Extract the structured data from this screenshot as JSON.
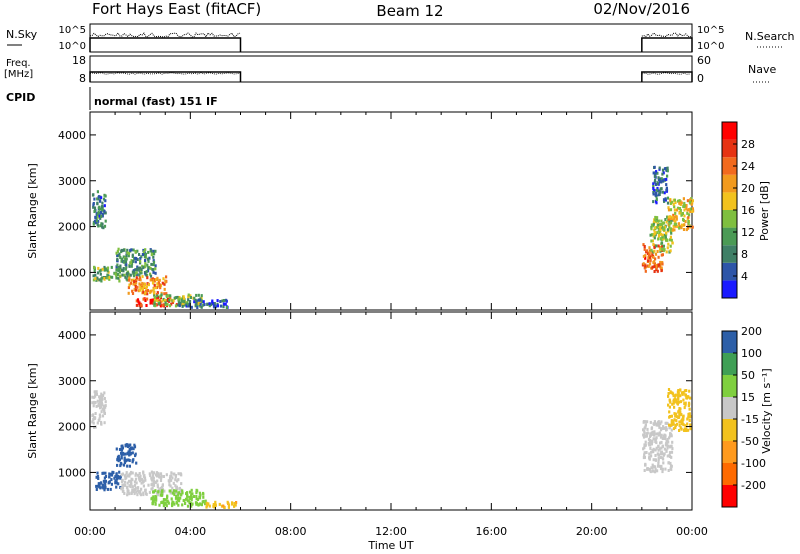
{
  "header": {
    "station": "Fort Hays East (fitACF)",
    "beam": "Beam 12",
    "date": "02/Nov/2016"
  },
  "nsky_panel": {
    "left_label": "N.Sky",
    "right_label": "N.Search",
    "left_ticks": [
      "10^5",
      "10^0"
    ],
    "right_ticks": [
      "10^5",
      "10^0"
    ]
  },
  "freq_panel": {
    "left_label_1": "Freq.",
    "left_label_2": "[MHz]",
    "right_label": "Nave",
    "left_ticks": [
      "18",
      "8"
    ],
    "right_ticks": [
      "60",
      "0"
    ]
  },
  "cpid_panel": {
    "label": "CPID",
    "program": "normal (fast) 151 IF"
  },
  "colors": {
    "axis": "#000000",
    "power_scale": [
      "#1a1aff",
      "#2d55a8",
      "#3f7f66",
      "#4b9a55",
      "#7fbf3f",
      "#f2c21e",
      "#f29a1e",
      "#f26a1e",
      "#e63312",
      "#ff0000"
    ],
    "velocity_scale": [
      "#ff0000",
      "#ff6a00",
      "#ff9a1e",
      "#f2c21e",
      "#c8c8c8",
      "#7fcf3f",
      "#3f9f55",
      "#2d5fa8"
    ]
  },
  "chart_data": [
    {
      "type": "heatmap",
      "name": "power",
      "ylabel": "Slant Range [km]",
      "y_ticks": [
        "1000",
        "2000",
        "3000",
        "4000"
      ],
      "ylim": [
        180,
        4500
      ],
      "x_ticks": [
        "00:00",
        "04:00",
        "08:00",
        "12:00",
        "16:00",
        "20:00",
        "00:00"
      ],
      "xlim_hours": [
        0,
        24
      ],
      "colorbar": {
        "label": "Power [dB]",
        "ticks": [
          "4",
          "8",
          "12",
          "16",
          "20",
          "24",
          "28"
        ],
        "range": [
          0,
          32
        ]
      },
      "data_windows_hours": [
        [
          0,
          6
        ],
        [
          22,
          24
        ]
      ],
      "blobs": [
        {
          "t": [
            0.05,
            0.6
          ],
          "r": [
            1950,
            2750
          ],
          "value": 8
        },
        {
          "t": [
            0.1,
            1.5
          ],
          "r": [
            800,
            1100
          ],
          "value": 12
        },
        {
          "t": [
            1.0,
            2.6
          ],
          "r": [
            900,
            1500
          ],
          "value": 10
        },
        {
          "t": [
            1.5,
            3.0
          ],
          "r": [
            500,
            900
          ],
          "value": 22
        },
        {
          "t": [
            1.8,
            3.5
          ],
          "r": [
            250,
            450
          ],
          "value": 28
        },
        {
          "t": [
            2.5,
            4.5
          ],
          "r": [
            250,
            500
          ],
          "value": 14
        },
        {
          "t": [
            3.5,
            5.5
          ],
          "r": [
            220,
            400
          ],
          "value": 6
        },
        {
          "t": [
            22.0,
            22.8
          ],
          "r": [
            1000,
            1600
          ],
          "value": 24
        },
        {
          "t": [
            22.3,
            23.2
          ],
          "r": [
            1400,
            2200
          ],
          "value": 14
        },
        {
          "t": [
            23.0,
            24.0
          ],
          "r": [
            1900,
            2600
          ],
          "value": 18
        },
        {
          "t": [
            22.4,
            23.0
          ],
          "r": [
            2500,
            3300
          ],
          "value": 6
        }
      ]
    },
    {
      "type": "heatmap",
      "name": "velocity",
      "ylabel": "Slant Range [km]",
      "y_ticks": [
        "1000",
        "2000",
        "3000",
        "4000"
      ],
      "ylim": [
        180,
        4500
      ],
      "x_ticks": [
        "00:00",
        "04:00",
        "08:00",
        "12:00",
        "16:00",
        "20:00",
        "00:00"
      ],
      "xlim_hours": [
        0,
        24
      ],
      "xlabel": "Time UT",
      "colorbar": {
        "label": "Velocity [m s⁻¹]",
        "ticks": [
          "-200",
          "-100",
          "-50",
          "-15",
          "15",
          "50",
          "100",
          "200"
        ]
      },
      "data_windows_hours": [
        [
          0,
          6
        ],
        [
          22,
          24
        ]
      ],
      "blobs": [
        {
          "t": [
            0.05,
            0.6
          ],
          "r": [
            1950,
            2750
          ],
          "value": 0
        },
        {
          "t": [
            0.2,
            1.2
          ],
          "r": [
            600,
            1000
          ],
          "value": 120
        },
        {
          "t": [
            1.0,
            1.8
          ],
          "r": [
            1100,
            1600
          ],
          "value": 150
        },
        {
          "t": [
            1.2,
            3.6
          ],
          "r": [
            500,
            1000
          ],
          "value": 0
        },
        {
          "t": [
            2.4,
            4.6
          ],
          "r": [
            250,
            600
          ],
          "value": 30
        },
        {
          "t": [
            4.5,
            5.8
          ],
          "r": [
            220,
            350
          ],
          "value": -40
        },
        {
          "t": [
            22.0,
            23.2
          ],
          "r": [
            1000,
            2100
          ],
          "value": 0
        },
        {
          "t": [
            23.0,
            23.9
          ],
          "r": [
            1900,
            2800
          ],
          "value": -30
        }
      ]
    }
  ]
}
